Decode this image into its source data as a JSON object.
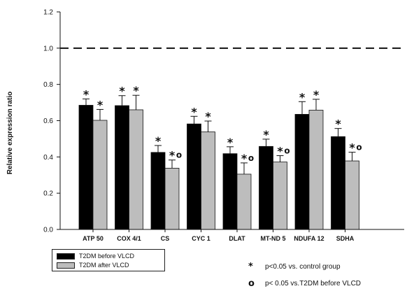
{
  "chart_data": {
    "type": "bar",
    "ylabel": "Relative expression ratio",
    "xlabel": "",
    "ylim": [
      0,
      1.2
    ],
    "yticks": [
      "0.0",
      "0.2",
      "0.4",
      "0.6",
      "0.8",
      "1.0",
      "1.2"
    ],
    "reference_line": 1.0,
    "grid": false,
    "categories": [
      "ATP 50",
      "COX 4/1",
      "CS",
      "CYC 1",
      "DLAT",
      "MT-ND 5",
      "NDUFA 12",
      "SDHA"
    ],
    "series": [
      {
        "name": "T2DM before VLCD",
        "color": "#000000",
        "values": [
          0.685,
          0.683,
          0.425,
          0.582,
          0.418,
          0.458,
          0.635,
          0.512
        ],
        "errors": [
          0.035,
          0.055,
          0.038,
          0.042,
          0.038,
          0.04,
          0.07,
          0.045
        ],
        "marks": [
          "*",
          "*",
          "*",
          "*",
          "*",
          "*",
          "*",
          "*"
        ]
      },
      {
        "name": "T2DM after VLCD",
        "color": "#bdbdbd",
        "values": [
          0.602,
          0.66,
          0.338,
          0.538,
          0.305,
          0.372,
          0.658,
          0.378
        ],
        "errors": [
          0.06,
          0.08,
          0.045,
          0.06,
          0.062,
          0.035,
          0.06,
          0.048
        ],
        "marks": [
          "*",
          "*",
          "*o",
          "*",
          "*o",
          "*o",
          "*",
          "*o"
        ]
      }
    ]
  },
  "legend": {
    "items": [
      {
        "label": "T2DM before VLCD",
        "color": "#000000"
      },
      {
        "label": "T2DM after VLCD",
        "color": "#bdbdbd"
      }
    ]
  },
  "notes": [
    {
      "symbol": "*",
      "text": "p<0.05 vs. control group"
    },
    {
      "symbol": "o",
      "text": "p< 0.05 vs.T2DM before VLCD"
    }
  ]
}
